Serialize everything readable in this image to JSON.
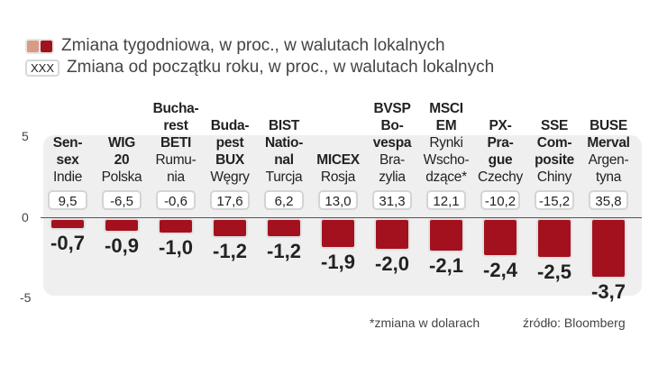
{
  "legend": {
    "weekly": "Zmiana tygodniowa, w proc., w walutach lokalnych",
    "ytd_swatch": "XXX",
    "ytd": "Zmiana od początku roku, w proc., w walutach lokalnych"
  },
  "colors": {
    "bar": "#a3111f",
    "bar_light": "#d99a86"
  },
  "chart_data": {
    "type": "bar",
    "ylim": [
      -5,
      5
    ],
    "yticks": [
      "5",
      "0",
      "-5"
    ],
    "categories": [
      {
        "name": [
          "Sen-",
          "sex"
        ],
        "country": [
          "Indie"
        ]
      },
      {
        "name": [
          "WIG",
          "20"
        ],
        "country": [
          "Polska"
        ]
      },
      {
        "name": [
          "Bucha-",
          "rest",
          "BETI"
        ],
        "country": [
          "Rumu-",
          "nia"
        ]
      },
      {
        "name": [
          "Buda-",
          "pest",
          "BUX"
        ],
        "country": [
          "Węgry"
        ]
      },
      {
        "name": [
          "BIST",
          "Natio-",
          "nal"
        ],
        "country": [
          "Turcja"
        ]
      },
      {
        "name": [
          "MICEX"
        ],
        "country": [
          "Rosja"
        ]
      },
      {
        "name": [
          "BVSP",
          "Bo-",
          "vespa"
        ],
        "country": [
          "Bra-",
          "zylia"
        ]
      },
      {
        "name": [
          "MSCI",
          "EM"
        ],
        "country": [
          "Rynki",
          "Wscho-",
          "dzące*"
        ]
      },
      {
        "name": [
          "PX-",
          "Pra-",
          "gue"
        ],
        "country": [
          "Czechy"
        ]
      },
      {
        "name": [
          "SSE",
          "Com-",
          "posite"
        ],
        "country": [
          "Chiny"
        ]
      },
      {
        "name": [
          "BUSE",
          "Merval"
        ],
        "country": [
          "Argen-",
          "tyna"
        ]
      }
    ],
    "weekly_labels": [
      "-0,7",
      "-0,9",
      "-1,0",
      "-1,2",
      "-1,2",
      "-1,9",
      "-2,0",
      "-2,1",
      "-2,4",
      "-2,5",
      "-3,7"
    ],
    "weekly": [
      -0.7,
      -0.9,
      -1.0,
      -1.2,
      -1.2,
      -1.9,
      -2.0,
      -2.1,
      -2.4,
      -2.5,
      -3.7
    ],
    "ytd_labels": [
      "9,5",
      "-6,5",
      "-0,6",
      "17,6",
      "6,2",
      "13,0",
      "31,3",
      "12,1",
      "-10,2",
      "-15,2",
      "35,8"
    ]
  },
  "footer": {
    "note": "*zmiana w dolarach",
    "source": "źródło: Bloomberg"
  }
}
